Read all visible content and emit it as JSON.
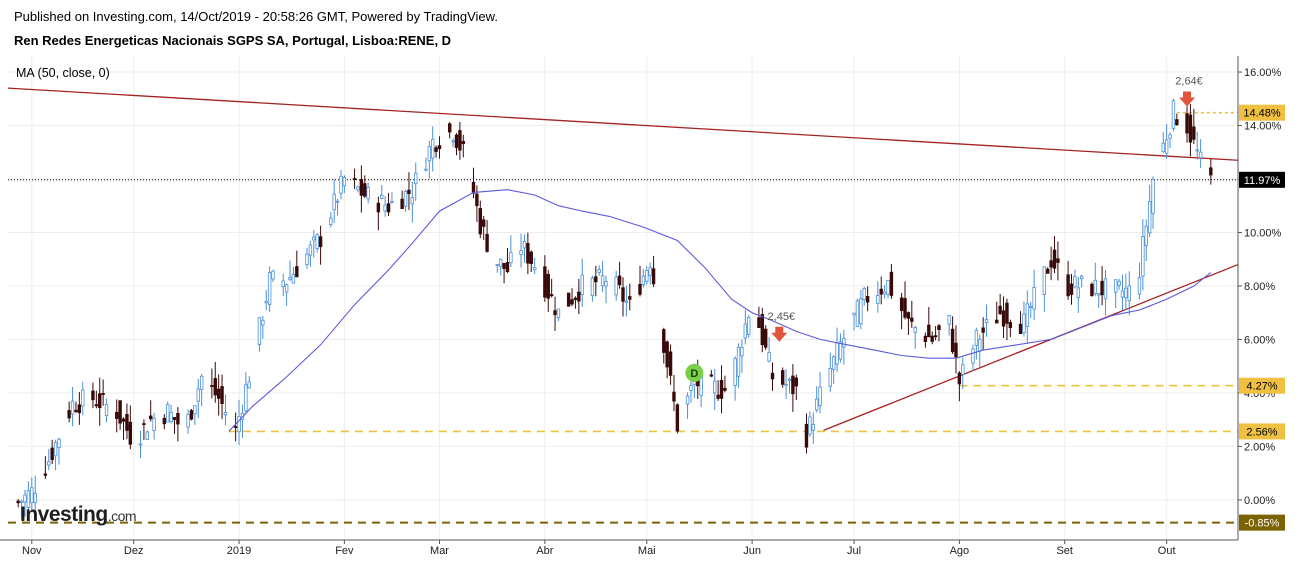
{
  "header": {
    "published": "Published on Investing.com, 14/Oct/2019 - 20:58:26 GMT, Powered by TradingView.",
    "instrument": "Ren Redes Energeticas Nacionais SGPS SA, Portugal, Lisboa:RENE, D",
    "indicator": "MA (50, close, 0)"
  },
  "brand": {
    "name": "Investing",
    "suffix": ".com"
  },
  "colors": {
    "up": "#4a90d9",
    "down": "#3a0a0a",
    "ma": "#5b5bde",
    "trend": "#a52222",
    "support": "#f0c040",
    "support_low": "#7a6300",
    "marker_arrow": "#e0533c",
    "marker_d": "#7ccf4a"
  },
  "chart_data": {
    "type": "candlestick",
    "y_unit": "%",
    "ylim": [
      -1.5,
      16.6
    ],
    "y_ticks": [
      "16.00%",
      "14.00%",
      "12.00%",
      "10.00%",
      "8.00%",
      "6.00%",
      "4.00%",
      "2.00%",
      "0.00%"
    ],
    "y_tick_values": [
      16,
      14,
      12,
      10,
      8,
      6,
      4,
      2,
      0
    ],
    "x_ticks": [
      "Nov",
      "Dez",
      "2019",
      "Fev",
      "Mar",
      "Abr",
      "Mai",
      "Jun",
      "Jul",
      "Ago",
      "Set",
      "Out"
    ],
    "x_tick_days": [
      0,
      30,
      61,
      92,
      120,
      151,
      181,
      212,
      242,
      273,
      304,
      334
    ],
    "x_range_days": [
      -7,
      355
    ],
    "last_value": "11.97%",
    "last_value_num": 11.97,
    "levels": [
      {
        "label": "14.48%",
        "value": 14.48,
        "from_day": 337,
        "style": "dotted"
      },
      {
        "label": "4.27%",
        "value": 4.27,
        "from_day": 273,
        "style": "dashed"
      },
      {
        "label": "2.56%",
        "value": 2.56,
        "from_day": 58,
        "style": "dashed"
      },
      {
        "label": "-0.85%",
        "value": -0.85,
        "from_day": -7,
        "style": "dashed-dark"
      }
    ],
    "trendlines": [
      {
        "name": "resistance",
        "from": [
          -7,
          15.4
        ],
        "to": [
          355,
          12.7
        ]
      },
      {
        "name": "support",
        "from": [
          233,
          2.6
        ],
        "to": [
          355,
          8.8
        ]
      }
    ],
    "annotations": [
      {
        "type": "arrow",
        "label": "2,45€",
        "day": 220,
        "value": 6.1
      },
      {
        "type": "arrow",
        "label": "2,64€",
        "day": 340,
        "value": 14.9
      },
      {
        "type": "badge",
        "label": "D",
        "day": 195,
        "value": 4.75
      }
    ],
    "ma_days": [
      58,
      65,
      75,
      85,
      95,
      105,
      112,
      120,
      130,
      140,
      148,
      155,
      162,
      170,
      180,
      190,
      198,
      206,
      212,
      218,
      225,
      232,
      240,
      248,
      256,
      264,
      272,
      280,
      290,
      300,
      310,
      318,
      326,
      334,
      342,
      347
    ],
    "ma_values": [
      2.56,
      3.5,
      4.6,
      5.8,
      7.3,
      8.6,
      9.6,
      10.8,
      11.5,
      11.6,
      11.4,
      11.0,
      10.8,
      10.6,
      10.2,
      9.7,
      8.7,
      7.5,
      7.0,
      6.7,
      6.3,
      6.0,
      5.8,
      5.6,
      5.4,
      5.3,
      5.3,
      5.6,
      5.8,
      6.0,
      6.5,
      6.9,
      7.1,
      7.5,
      8.0,
      8.5
    ],
    "anchor_days": [
      -4,
      0,
      5,
      12,
      18,
      25,
      30,
      35,
      40,
      45,
      50,
      55,
      60,
      65,
      70,
      75,
      80,
      85,
      92,
      98,
      105,
      112,
      118,
      124,
      128,
      132,
      136,
      140,
      144,
      148,
      155,
      162,
      170,
      176,
      182,
      190,
      195,
      200,
      205,
      212,
      218,
      225,
      228,
      232,
      238,
      245,
      252,
      258,
      265,
      270,
      273,
      278,
      285,
      292,
      300,
      305,
      310,
      318,
      325,
      330,
      336,
      340,
      344,
      347
    ],
    "anchor_values": [
      -0.1,
      0.3,
      1.5,
      3.6,
      3.8,
      3.3,
      2.2,
      3.0,
      3.3,
      2.6,
      4.6,
      3.8,
      2.6,
      5.2,
      8.2,
      8.2,
      9.0,
      9.8,
      12.0,
      11.4,
      11.0,
      11.6,
      13.4,
      13.8,
      12.7,
      10.3,
      9.0,
      8.6,
      9.5,
      8.8,
      7.0,
      8.0,
      8.3,
      7.2,
      9.0,
      2.8,
      4.4,
      4.2,
      4.1,
      7.5,
      4.6,
      4.1,
      2.4,
      3.9,
      5.8,
      7.5,
      8.1,
      6.6,
      6.0,
      6.6,
      4.4,
      6.0,
      7.0,
      6.6,
      9.0,
      8.0,
      8.0,
      7.8,
      7.8,
      12.0,
      14.5,
      14.0,
      12.6,
      11.97
    ]
  }
}
